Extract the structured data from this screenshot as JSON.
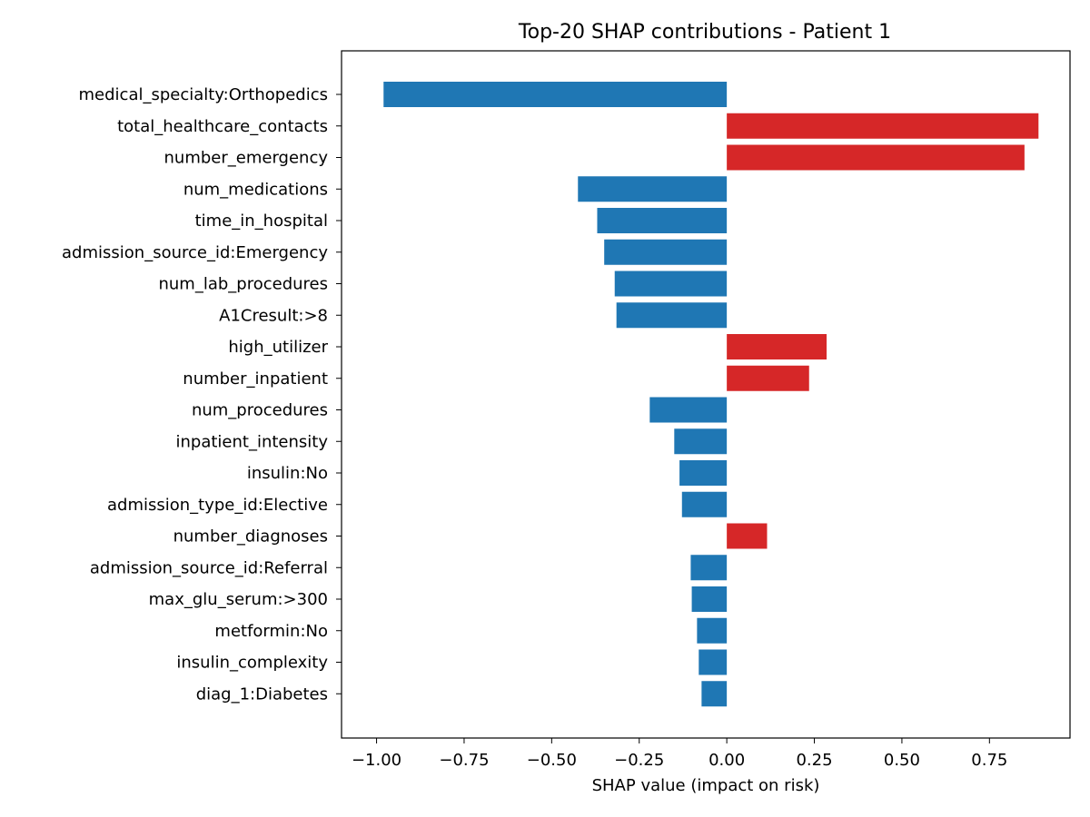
{
  "chart_data": {
    "type": "bar",
    "orientation": "horizontal",
    "title": "Top-20 SHAP contributions - Patient 1",
    "xlabel": "SHAP value (impact on risk)",
    "ylabel": "",
    "xlim": [
      -1.1,
      0.98
    ],
    "x_ticks": [
      -1.0,
      -0.75,
      -0.5,
      -0.25,
      0.0,
      0.25,
      0.5,
      0.75
    ],
    "x_tick_labels": [
      "−1.00",
      "−0.75",
      "−0.50",
      "−0.25",
      "0.00",
      "0.25",
      "0.50",
      "0.75"
    ],
    "grid": false,
    "legend": false,
    "colors": {
      "positive": "#d62728",
      "negative": "#1f77b4"
    },
    "categories": [
      "medical_specialty:Orthopedics",
      "total_healthcare_contacts",
      "number_emergency",
      "num_medications",
      "time_in_hospital",
      "admission_source_id:Emergency",
      "num_lab_procedures",
      "A1Cresult:>8",
      "high_utilizer",
      "number_inpatient",
      "num_procedures",
      "inpatient_intensity",
      "insulin:No",
      "admission_type_id:Elective",
      "number_diagnoses",
      "admission_source_id:Referral",
      "max_glu_serum:>300",
      "metformin:No",
      "insulin_complexity",
      "diag_1:Diabetes"
    ],
    "values": [
      -0.98,
      0.89,
      0.85,
      -0.425,
      -0.37,
      -0.35,
      -0.32,
      -0.315,
      0.285,
      0.235,
      -0.22,
      -0.15,
      -0.135,
      -0.128,
      0.115,
      -0.103,
      -0.1,
      -0.085,
      -0.08,
      -0.072
    ]
  }
}
